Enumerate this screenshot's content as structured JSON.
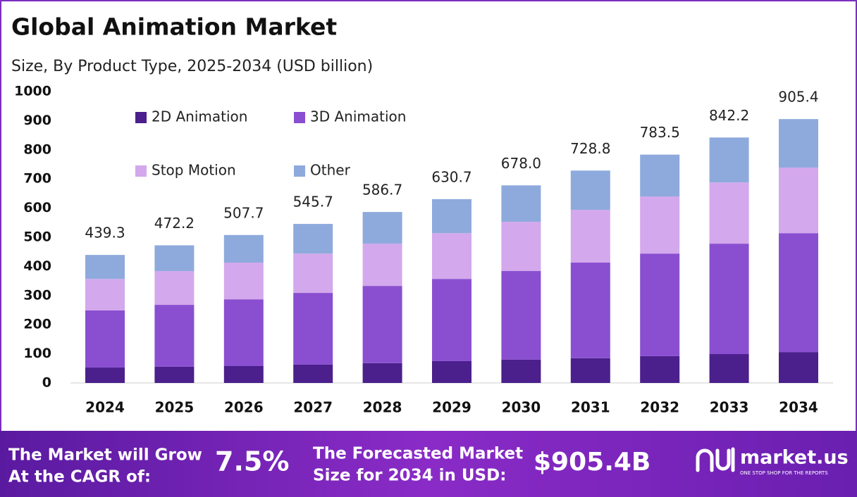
{
  "chart_data": {
    "type": "stacked_bar",
    "title": "Global Animation Market",
    "subtitle": "Size, By Product Type, 2025-2034 (USD billion)",
    "categories": [
      "2024",
      "2025",
      "2026",
      "2027",
      "2028",
      "2029",
      "2030",
      "2031",
      "2032",
      "2033",
      "2034"
    ],
    "series": [
      {
        "name": "2D Animation",
        "color": "#4b1f8c",
        "values": [
          53,
          56,
          58,
          63,
          68,
          75,
          80,
          85,
          92,
          99,
          106
        ]
      },
      {
        "name": "3D Animation",
        "color": "#8a4fd0",
        "values": [
          196,
          212,
          229,
          246,
          265,
          282,
          304,
          328,
          352,
          379,
          408
        ]
      },
      {
        "name": "Stop Motion",
        "color": "#d3a8ec",
        "values": [
          108,
          116,
          126,
          135,
          145,
          157,
          169,
          181,
          196,
          210,
          225
        ]
      },
      {
        "name": "Other",
        "color": "#8eaadd",
        "values": [
          82.3,
          88.2,
          94.7,
          101.7,
          108.7,
          116.7,
          125,
          134.8,
          143.5,
          154.2,
          166.4
        ]
      }
    ],
    "totals": [
      439.3,
      472.2,
      507.7,
      545.7,
      586.7,
      630.7,
      678.0,
      728.8,
      783.5,
      842.2,
      905.4
    ],
    "total_labels": [
      "439.3",
      "472.2",
      "507.7",
      "545.7",
      "586.7",
      "630.7",
      "678.0",
      "728.8",
      "783.5",
      "842.2",
      "905.4"
    ],
    "ylim": [
      0,
      1000
    ],
    "yticks": [
      0,
      100,
      200,
      300,
      400,
      500,
      600,
      700,
      800,
      900,
      1000
    ],
    "grid": false
  },
  "footer": {
    "cagr_text": [
      "The Market will Grow",
      "At the CAGR of:"
    ],
    "cagr_value": "7.5%",
    "forecast_text": [
      "The Forecasted Market",
      "Size for 2034 in USD:"
    ],
    "forecast_value": "$905.4B",
    "brand": "market.us",
    "tagline": "ONE STOP SHOP FOR THE REPORTS"
  }
}
